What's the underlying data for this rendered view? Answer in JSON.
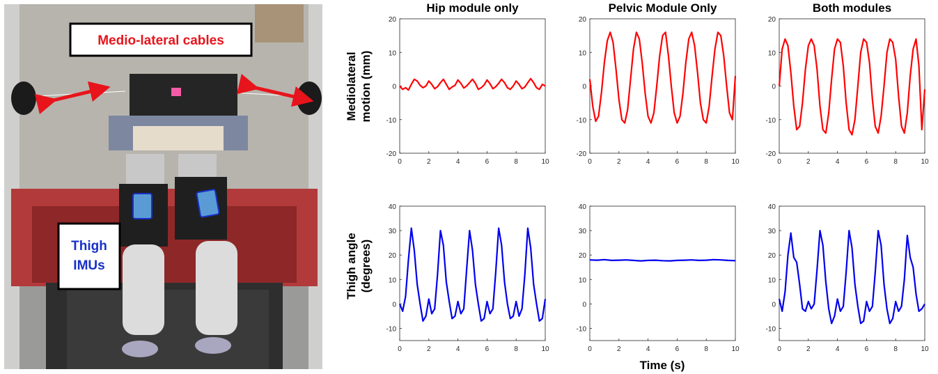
{
  "photo": {
    "cables_label": "Medio-lateral cables",
    "imu_label_line1": "Thigh",
    "imu_label_line2": "IMUs",
    "colors": {
      "cables_text": "#e8141b",
      "imu_text": "#1730c8",
      "arrow": "#e8141b",
      "imu_patch": "#5b9bd5"
    }
  },
  "figure": {
    "top_ylabel": [
      "Mediolateral",
      "motion (mm)"
    ],
    "bottom_ylabel": [
      "Thigh angle",
      "(degrees)"
    ],
    "xlabel": "Time (s)",
    "colors": {
      "top_series": "#ff0000",
      "bottom_series": "#0000ee"
    }
  },
  "chart_data": [
    {
      "type": "line",
      "row": "top",
      "col": 0,
      "title": "Hip module only",
      "xlim": [
        0,
        10
      ],
      "ylim": [
        -20,
        20
      ],
      "x_ticks": [
        0,
        2,
        4,
        6,
        8,
        10
      ],
      "y_ticks": [
        -20,
        -10,
        0,
        10,
        20
      ],
      "x": [
        0,
        0.2,
        0.4,
        0.6,
        0.8,
        1.0,
        1.2,
        1.4,
        1.6,
        1.8,
        2.0,
        2.2,
        2.4,
        2.6,
        2.8,
        3.0,
        3.2,
        3.4,
        3.6,
        3.8,
        4.0,
        4.2,
        4.4,
        4.6,
        4.8,
        5.0,
        5.2,
        5.4,
        5.6,
        5.8,
        6.0,
        6.2,
        6.4,
        6.6,
        6.8,
        7.0,
        7.2,
        7.4,
        7.6,
        7.8,
        8.0,
        8.2,
        8.4,
        8.6,
        8.8,
        9.0,
        9.2,
        9.4,
        9.6,
        9.8,
        10.0
      ],
      "y": [
        0,
        -1,
        -0.5,
        -1.2,
        0.5,
        2,
        1.5,
        0.2,
        -0.5,
        0,
        1.5,
        0.5,
        -0.8,
        -0.2,
        1,
        2,
        0.5,
        -1,
        -0.3,
        0.2,
        1.8,
        0.8,
        -0.6,
        0,
        1,
        2,
        0.8,
        -1,
        -0.5,
        0.3,
        1.8,
        0.7,
        -0.8,
        -0.2,
        0.8,
        2,
        1,
        -0.5,
        -1,
        0,
        1.5,
        0.5,
        -0.8,
        -0.3,
        1,
        2.2,
        1,
        -0.5,
        -1,
        0.5,
        0
      ]
    },
    {
      "type": "line",
      "row": "top",
      "col": 1,
      "title": "Pelvic Module Only",
      "xlim": [
        0,
        10
      ],
      "ylim": [
        -20,
        20
      ],
      "x_ticks": [
        0,
        2,
        4,
        6,
        8,
        10
      ],
      "y_ticks": [
        -20,
        -10,
        0,
        10,
        20
      ],
      "x": [
        0,
        0.2,
        0.4,
        0.6,
        0.8,
        1.0,
        1.2,
        1.4,
        1.6,
        1.8,
        2.0,
        2.2,
        2.4,
        2.6,
        2.8,
        3.0,
        3.2,
        3.4,
        3.6,
        3.8,
        4.0,
        4.2,
        4.4,
        4.6,
        4.8,
        5.0,
        5.2,
        5.4,
        5.6,
        5.8,
        6.0,
        6.2,
        6.4,
        6.6,
        6.8,
        7.0,
        7.2,
        7.4,
        7.6,
        7.8,
        8.0,
        8.2,
        8.4,
        8.6,
        8.8,
        9.0,
        9.2,
        9.4,
        9.6,
        9.8,
        10.0
      ],
      "y": [
        2,
        -6,
        -10.5,
        -9,
        -2,
        7,
        13.5,
        16,
        13,
        5,
        -4,
        -10,
        -11,
        -7,
        2,
        11,
        16,
        14,
        7,
        -2,
        -9,
        -11,
        -8,
        0,
        9,
        15,
        16,
        9,
        0,
        -8,
        -11,
        -9,
        -2,
        7,
        14,
        16,
        12,
        4,
        -5,
        -10,
        -11,
        -6,
        3,
        11,
        16,
        15,
        9,
        0,
        -8,
        -10,
        3
      ]
    },
    {
      "type": "line",
      "row": "top",
      "col": 2,
      "title": "Both modules",
      "xlim": [
        0,
        10
      ],
      "ylim": [
        -20,
        20
      ],
      "x_ticks": [
        0,
        2,
        4,
        6,
        8,
        10
      ],
      "y_ticks": [
        -20,
        -10,
        0,
        10,
        20
      ],
      "x": [
        0,
        0.2,
        0.4,
        0.6,
        0.8,
        1.0,
        1.2,
        1.4,
        1.6,
        1.8,
        2.0,
        2.2,
        2.4,
        2.6,
        2.8,
        3.0,
        3.2,
        3.4,
        3.6,
        3.8,
        4.0,
        4.2,
        4.4,
        4.6,
        4.8,
        5.0,
        5.2,
        5.4,
        5.6,
        5.8,
        6.0,
        6.2,
        6.4,
        6.6,
        6.8,
        7.0,
        7.2,
        7.4,
        7.6,
        7.8,
        8.0,
        8.2,
        8.4,
        8.6,
        8.8,
        9.0,
        9.2,
        9.4,
        9.6,
        9.8,
        10.0
      ],
      "y": [
        0,
        11,
        14,
        12,
        4,
        -6,
        -13,
        -12,
        -5,
        5,
        12,
        14,
        12,
        5,
        -6,
        -13,
        -14,
        -8,
        2,
        11,
        14,
        13,
        6,
        -5,
        -13,
        -14.5,
        -10,
        0,
        10,
        14,
        13,
        7,
        -4,
        -12,
        -14,
        -9,
        0,
        10,
        14,
        13,
        8,
        -3,
        -12,
        -14,
        -8,
        3,
        11,
        14,
        6,
        -13,
        -1
      ]
    },
    {
      "type": "line",
      "row": "bottom",
      "col": 0,
      "title": "",
      "xlim": [
        0,
        10
      ],
      "ylim": [
        -15,
        40
      ],
      "x_ticks": [
        0,
        2,
        4,
        6,
        8,
        10
      ],
      "y_ticks": [
        -10,
        0,
        10,
        20,
        30,
        40
      ],
      "x": [
        0,
        0.2,
        0.4,
        0.6,
        0.8,
        1.0,
        1.2,
        1.4,
        1.6,
        1.8,
        2.0,
        2.2,
        2.4,
        2.6,
        2.8,
        3.0,
        3.2,
        3.4,
        3.6,
        3.8,
        4.0,
        4.2,
        4.4,
        4.6,
        4.8,
        5.0,
        5.2,
        5.4,
        5.6,
        5.8,
        6.0,
        6.2,
        6.4,
        6.6,
        6.8,
        7.0,
        7.2,
        7.4,
        7.6,
        7.8,
        8.0,
        8.2,
        8.4,
        8.6,
        8.8,
        9.0,
        9.2,
        9.4,
        9.6,
        9.8,
        10.0
      ],
      "y": [
        0,
        -3,
        3,
        18,
        31,
        22,
        8,
        0,
        -7,
        -5,
        2,
        -4,
        -2,
        12,
        30,
        24,
        9,
        1,
        -6,
        -5,
        1,
        -4,
        -2,
        14,
        30,
        22,
        8,
        0,
        -7,
        -6,
        1,
        -4,
        -2,
        13,
        31,
        24,
        9,
        0,
        -6,
        -5,
        1,
        -5,
        -2,
        12,
        31,
        23,
        8,
        0,
        -7,
        -6,
        2
      ]
    },
    {
      "type": "line",
      "row": "bottom",
      "col": 1,
      "title": "",
      "xlim": [
        0,
        10
      ],
      "ylim": [
        -15,
        40
      ],
      "x_ticks": [
        0,
        2,
        4,
        6,
        8,
        10
      ],
      "y_ticks": [
        -10,
        0,
        10,
        20,
        30,
        40
      ],
      "x": [
        0,
        0.5,
        1.0,
        1.5,
        2.0,
        2.5,
        3.0,
        3.5,
        4.0,
        4.5,
        5.0,
        5.5,
        6.0,
        6.5,
        7.0,
        7.5,
        8.0,
        8.5,
        9.0,
        9.5,
        10.0
      ],
      "y": [
        18,
        17.9,
        18.1,
        17.8,
        17.9,
        18,
        17.8,
        17.6,
        17.8,
        17.9,
        17.7,
        17.6,
        17.8,
        17.9,
        18,
        17.8,
        17.9,
        18.1,
        18,
        17.8,
        17.7
      ]
    },
    {
      "type": "line",
      "row": "bottom",
      "col": 2,
      "title": "",
      "xlim": [
        0,
        10
      ],
      "ylim": [
        -15,
        40
      ],
      "x_ticks": [
        0,
        2,
        4,
        6,
        8,
        10
      ],
      "y_ticks": [
        -10,
        0,
        10,
        20,
        30,
        40
      ],
      "x": [
        0,
        0.2,
        0.4,
        0.6,
        0.8,
        1.0,
        1.2,
        1.4,
        1.6,
        1.8,
        2.0,
        2.2,
        2.4,
        2.6,
        2.8,
        3.0,
        3.2,
        3.4,
        3.6,
        3.8,
        4.0,
        4.2,
        4.4,
        4.6,
        4.8,
        5.0,
        5.2,
        5.4,
        5.6,
        5.8,
        6.0,
        6.2,
        6.4,
        6.6,
        6.8,
        7.0,
        7.2,
        7.4,
        7.6,
        7.8,
        8.0,
        8.2,
        8.4,
        8.6,
        8.8,
        9.0,
        9.2,
        9.4,
        9.6,
        9.8,
        10.0
      ],
      "y": [
        2,
        -3,
        5,
        20,
        29,
        19,
        17,
        8,
        -2,
        -3,
        1,
        -2,
        0,
        14,
        30,
        24,
        9,
        -2,
        -8,
        -5,
        2,
        -3,
        -1,
        13,
        30,
        23,
        8,
        -1,
        -8,
        -7,
        1,
        -3,
        -1,
        13,
        30,
        24,
        8,
        -2,
        -8,
        -6,
        1,
        -3,
        -1,
        10,
        28,
        19,
        15,
        4,
        -3,
        -2,
        0
      ]
    }
  ]
}
